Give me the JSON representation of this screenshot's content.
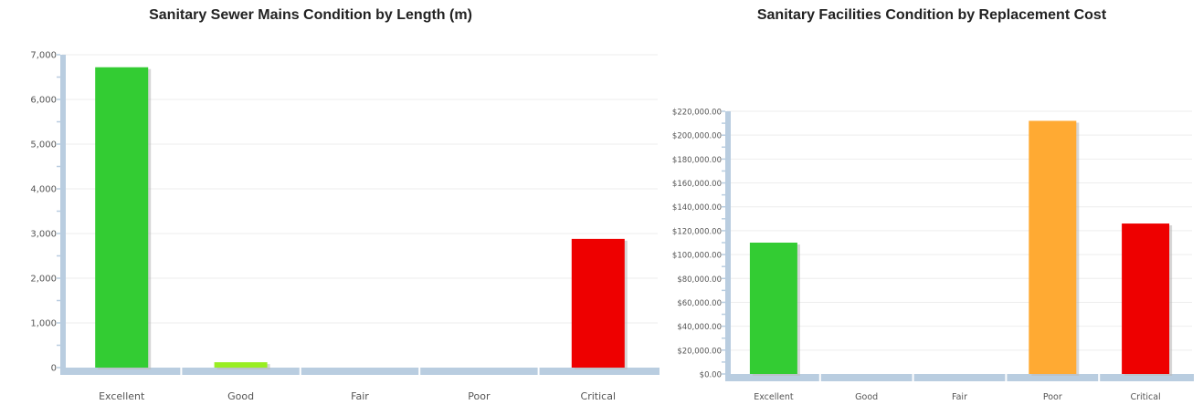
{
  "chart_data": [
    {
      "type": "bar",
      "title": "Sanitary Sewer Mains Condition by Length (m)",
      "categories": [
        "Excellent",
        "Good",
        "Fair",
        "Poor",
        "Critical"
      ],
      "values": [
        6720,
        120,
        0,
        0,
        2880
      ],
      "colors": [
        "#33cc33",
        "#99ee22",
        "#99ee22",
        "#ffaa33",
        "#ee0000"
      ],
      "ylim": [
        0,
        7000
      ],
      "yticks": [
        "0",
        "1,000",
        "2,000",
        "3,000",
        "4,000",
        "5,000",
        "6,000",
        "7,000"
      ],
      "grid": true
    },
    {
      "type": "bar",
      "title": "Sanitary Facilities Condition by Replacement Cost",
      "categories": [
        "Excellent",
        "Good",
        "Fair",
        "Poor",
        "Critical"
      ],
      "values": [
        110000,
        0,
        0,
        212000,
        126000
      ],
      "colors": [
        "#33cc33",
        "#99ee22",
        "#99ee22",
        "#ffaa33",
        "#ee0000"
      ],
      "ylim": [
        0,
        220000
      ],
      "yticks": [
        "$0.00",
        "$20,000.00",
        "$40,000.00",
        "$60,000.00",
        "$80,000.00",
        "$100,000.00",
        "$120,000.00",
        "$140,000.00",
        "$160,000.00",
        "$180,000.00",
        "$200,000.00",
        "$220,000.00"
      ],
      "grid": true
    }
  ]
}
